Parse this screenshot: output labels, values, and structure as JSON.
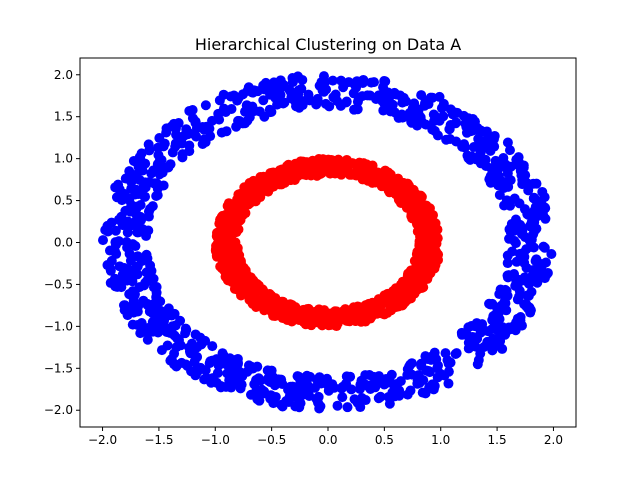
{
  "chart_data": {
    "type": "scatter",
    "title": "Hierarchical Clustering on Data A",
    "xlabel": "",
    "ylabel": "",
    "xlim": [
      -2.2,
      2.2
    ],
    "ylim": [
      -2.2,
      2.2
    ],
    "xticks": [
      -2.0,
      -1.5,
      -1.0,
      -0.5,
      0.0,
      0.5,
      1.0,
      1.5,
      2.0
    ],
    "yticks": [
      -2.0,
      -1.5,
      -1.0,
      -0.5,
      0.0,
      0.5,
      1.0,
      1.5,
      2.0
    ],
    "xtick_labels": [
      "−2.0",
      "−1.5",
      "−1.0",
      "−0.5",
      "0.0",
      "0.5",
      "1.0",
      "1.5",
      "2.0"
    ],
    "ytick_labels": [
      "−2.0",
      "−1.5",
      "−1.0",
      "−0.5",
      "0.0",
      "0.5",
      "1.0",
      "1.5",
      "2.0"
    ],
    "grid": false,
    "legend": "none",
    "series": [
      {
        "color": "#0000ff",
        "shape": "ring",
        "radius_range": [
          1.6,
          2.0
        ],
        "points": 1000
      },
      {
        "color": "#ff0000",
        "shape": "ring",
        "radius_range": [
          0.8,
          1.0
        ],
        "points": 1000
      }
    ]
  }
}
